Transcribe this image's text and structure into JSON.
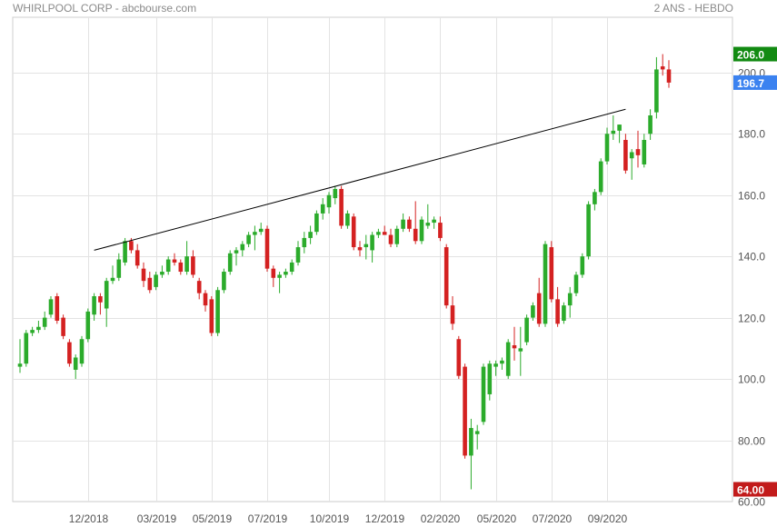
{
  "header": {
    "title": "WHIRLPOOL CORP - abcbourse.com",
    "period": "2 ANS - HEBDO"
  },
  "colors": {
    "up": "#2bab2b",
    "down": "#d42121",
    "high_badge": "#128a12",
    "last_badge": "#3b82f0",
    "low_badge": "#c21b1b",
    "grid": "#e3e3e3",
    "trendline": "#000000"
  },
  "badges": {
    "high": "206.0",
    "last": "196.7",
    "low": "64.00"
  },
  "chart_data": {
    "type": "candlestick",
    "ylim": [
      60,
      210
    ],
    "y_ticks": [
      60,
      80,
      100,
      120,
      140,
      160,
      180,
      200
    ],
    "y_tick_labels": [
      "60.00",
      "80.00",
      "100.0",
      "120.0",
      "140.0",
      "160.0",
      "180.0",
      "200.0"
    ],
    "x_ticks": [
      {
        "index": 11,
        "label": "12/2018"
      },
      {
        "index": 22,
        "label": "03/2019"
      },
      {
        "index": 31,
        "label": "05/2019"
      },
      {
        "index": 40,
        "label": "07/2019"
      },
      {
        "index": 50,
        "label": "10/2019"
      },
      {
        "index": 59,
        "label": "12/2019"
      },
      {
        "index": 68,
        "label": "02/2020"
      },
      {
        "index": 77,
        "label": "05/2020"
      },
      {
        "index": 86,
        "label": "07/2020"
      },
      {
        "index": 95,
        "label": "09/2020"
      }
    ],
    "trendline": {
      "from": {
        "index": 12,
        "value": 142
      },
      "to": {
        "index": 98,
        "value": 188
      }
    },
    "candles": [
      {
        "o": 104,
        "h": 113,
        "l": 102,
        "c": 105
      },
      {
        "o": 105,
        "h": 116,
        "l": 104,
        "c": 115
      },
      {
        "o": 115,
        "h": 117,
        "l": 114,
        "c": 116
      },
      {
        "o": 116,
        "h": 119,
        "l": 115,
        "c": 117
      },
      {
        "o": 117,
        "h": 122,
        "l": 116,
        "c": 120
      },
      {
        "o": 121,
        "h": 127,
        "l": 120,
        "c": 126
      },
      {
        "o": 127,
        "h": 128,
        "l": 118,
        "c": 119
      },
      {
        "o": 120,
        "h": 121,
        "l": 113,
        "c": 114
      },
      {
        "o": 112,
        "h": 113,
        "l": 104,
        "c": 105
      },
      {
        "o": 103,
        "h": 108,
        "l": 100,
        "c": 107
      },
      {
        "o": 105,
        "h": 114,
        "l": 104,
        "c": 113
      },
      {
        "o": 113,
        "h": 123,
        "l": 112,
        "c": 122
      },
      {
        "o": 121,
        "h": 128,
        "l": 119,
        "c": 127
      },
      {
        "o": 127,
        "h": 128,
        "l": 121,
        "c": 125
      },
      {
        "o": 123,
        "h": 133,
        "l": 117,
        "c": 132
      },
      {
        "o": 132,
        "h": 137,
        "l": 131,
        "c": 133
      },
      {
        "o": 133,
        "h": 141,
        "l": 132,
        "c": 139
      },
      {
        "o": 138,
        "h": 146,
        "l": 137,
        "c": 145
      },
      {
        "o": 145,
        "h": 146,
        "l": 141,
        "c": 142
      },
      {
        "o": 142,
        "h": 144,
        "l": 136,
        "c": 137
      },
      {
        "o": 136,
        "h": 138,
        "l": 130,
        "c": 132
      },
      {
        "o": 133,
        "h": 135,
        "l": 128,
        "c": 129
      },
      {
        "o": 130,
        "h": 135,
        "l": 129,
        "c": 134
      },
      {
        "o": 134,
        "h": 137,
        "l": 133,
        "c": 135
      },
      {
        "o": 135,
        "h": 140,
        "l": 134,
        "c": 139
      },
      {
        "o": 139,
        "h": 141,
        "l": 137,
        "c": 138
      },
      {
        "o": 138,
        "h": 139,
        "l": 134,
        "c": 135
      },
      {
        "o": 135,
        "h": 145,
        "l": 134,
        "c": 140
      },
      {
        "o": 140,
        "h": 142,
        "l": 133,
        "c": 134
      },
      {
        "o": 132,
        "h": 133,
        "l": 126,
        "c": 128
      },
      {
        "o": 128,
        "h": 129,
        "l": 122,
        "c": 124
      },
      {
        "o": 126,
        "h": 127,
        "l": 114,
        "c": 115
      },
      {
        "o": 115,
        "h": 130,
        "l": 114,
        "c": 129
      },
      {
        "o": 129,
        "h": 136,
        "l": 128,
        "c": 135
      },
      {
        "o": 135,
        "h": 142,
        "l": 134,
        "c": 141
      },
      {
        "o": 141,
        "h": 143,
        "l": 137,
        "c": 142
      },
      {
        "o": 142,
        "h": 145,
        "l": 140,
        "c": 144
      },
      {
        "o": 144,
        "h": 148,
        "l": 143,
        "c": 147
      },
      {
        "o": 147,
        "h": 150,
        "l": 142,
        "c": 148
      },
      {
        "o": 148,
        "h": 151,
        "l": 147,
        "c": 149
      },
      {
        "o": 149,
        "h": 150,
        "l": 135,
        "c": 136
      },
      {
        "o": 136,
        "h": 137,
        "l": 130,
        "c": 133
      },
      {
        "o": 133,
        "h": 135,
        "l": 128,
        "c": 134
      },
      {
        "o": 134,
        "h": 136,
        "l": 133,
        "c": 135
      },
      {
        "o": 135,
        "h": 139,
        "l": 134,
        "c": 138
      },
      {
        "o": 138,
        "h": 145,
        "l": 137,
        "c": 143
      },
      {
        "o": 143,
        "h": 148,
        "l": 141,
        "c": 146
      },
      {
        "o": 146,
        "h": 150,
        "l": 144,
        "c": 148
      },
      {
        "o": 148,
        "h": 155,
        "l": 147,
        "c": 154
      },
      {
        "o": 154,
        "h": 159,
        "l": 152,
        "c": 157
      },
      {
        "o": 156,
        "h": 161,
        "l": 154,
        "c": 160
      },
      {
        "o": 159,
        "h": 163,
        "l": 157,
        "c": 162
      },
      {
        "o": 162,
        "h": 163,
        "l": 149,
        "c": 150
      },
      {
        "o": 150,
        "h": 155,
        "l": 149,
        "c": 154
      },
      {
        "o": 153,
        "h": 154,
        "l": 142,
        "c": 143
      },
      {
        "o": 143,
        "h": 145,
        "l": 140,
        "c": 142
      },
      {
        "o": 143,
        "h": 147,
        "l": 139,
        "c": 144
      },
      {
        "o": 142,
        "h": 148,
        "l": 138,
        "c": 147
      },
      {
        "o": 147,
        "h": 149,
        "l": 146,
        "c": 148
      },
      {
        "o": 148,
        "h": 150,
        "l": 147,
        "c": 147
      },
      {
        "o": 147,
        "h": 149,
        "l": 143,
        "c": 144
      },
      {
        "o": 144,
        "h": 150,
        "l": 143,
        "c": 149
      },
      {
        "o": 149,
        "h": 154,
        "l": 148,
        "c": 152
      },
      {
        "o": 152,
        "h": 153,
        "l": 148,
        "c": 149
      },
      {
        "o": 149,
        "h": 158,
        "l": 144,
        "c": 145
      },
      {
        "o": 145,
        "h": 153,
        "l": 144,
        "c": 152
      },
      {
        "o": 150,
        "h": 157,
        "l": 149,
        "c": 151
      },
      {
        "o": 151,
        "h": 153,
        "l": 149,
        "c": 152
      },
      {
        "o": 151,
        "h": 153,
        "l": 145,
        "c": 146
      },
      {
        "o": 143,
        "h": 144,
        "l": 123,
        "c": 124
      },
      {
        "o": 124,
        "h": 127,
        "l": 116,
        "c": 118
      },
      {
        "o": 113,
        "h": 114,
        "l": 100,
        "c": 101
      },
      {
        "o": 104,
        "h": 105,
        "l": 74,
        "c": 75
      },
      {
        "o": 75,
        "h": 87,
        "l": 64,
        "c": 84
      },
      {
        "o": 82,
        "h": 85,
        "l": 77,
        "c": 83
      },
      {
        "o": 86,
        "h": 105,
        "l": 85,
        "c": 104
      },
      {
        "o": 95,
        "h": 106,
        "l": 93,
        "c": 105
      },
      {
        "o": 104,
        "h": 106,
        "l": 101,
        "c": 105
      },
      {
        "o": 105,
        "h": 107,
        "l": 103,
        "c": 106
      },
      {
        "o": 101,
        "h": 113,
        "l": 100,
        "c": 112
      },
      {
        "o": 111,
        "h": 117,
        "l": 106,
        "c": 110
      },
      {
        "o": 109,
        "h": 117,
        "l": 101,
        "c": 110
      },
      {
        "o": 112,
        "h": 121,
        "l": 111,
        "c": 120
      },
      {
        "o": 120,
        "h": 125,
        "l": 119,
        "c": 124
      },
      {
        "o": 128,
        "h": 133,
        "l": 117,
        "c": 118
      },
      {
        "o": 118,
        "h": 145,
        "l": 117,
        "c": 144
      },
      {
        "o": 143,
        "h": 145,
        "l": 125,
        "c": 126
      },
      {
        "o": 126,
        "h": 130,
        "l": 117,
        "c": 118
      },
      {
        "o": 119,
        "h": 125,
        "l": 118,
        "c": 124
      },
      {
        "o": 124,
        "h": 130,
        "l": 120,
        "c": 128
      },
      {
        "o": 128,
        "h": 135,
        "l": 127,
        "c": 134
      },
      {
        "o": 134,
        "h": 141,
        "l": 133,
        "c": 140
      },
      {
        "o": 140,
        "h": 158,
        "l": 139,
        "c": 157
      },
      {
        "o": 157,
        "h": 162,
        "l": 155,
        "c": 161
      },
      {
        "o": 161,
        "h": 172,
        "l": 160,
        "c": 171
      },
      {
        "o": 171,
        "h": 182,
        "l": 170,
        "c": 180
      },
      {
        "o": 180,
        "h": 186,
        "l": 178,
        "c": 181
      },
      {
        "o": 181,
        "h": 183,
        "l": 177,
        "c": 183
      },
      {
        "o": 178,
        "h": 180,
        "l": 167,
        "c": 168
      },
      {
        "o": 172,
        "h": 175,
        "l": 165,
        "c": 174
      },
      {
        "o": 175,
        "h": 181,
        "l": 169,
        "c": 173
      },
      {
        "o": 170,
        "h": 180,
        "l": 169,
        "c": 178
      },
      {
        "o": 180,
        "h": 188,
        "l": 178,
        "c": 186
      },
      {
        "o": 187,
        "h": 205,
        "l": 185,
        "c": 201
      },
      {
        "o": 202,
        "h": 206,
        "l": 199,
        "c": 201
      },
      {
        "o": 201,
        "h": 204,
        "l": 195,
        "c": 196.7
      }
    ]
  }
}
